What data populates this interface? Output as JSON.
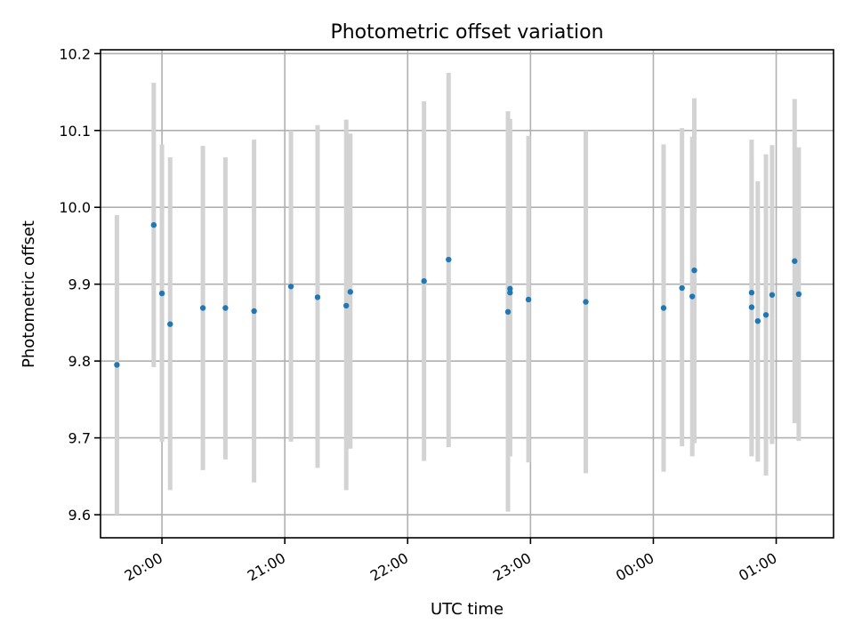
{
  "chart_data": {
    "type": "scatter",
    "title": "Photometric offset variation",
    "xlabel": "UTC time",
    "ylabel": "Photometric offset",
    "x_axis_kind": "datetime",
    "xlim": [
      "19:30",
      "01:28"
    ],
    "ylim": [
      9.57,
      10.205
    ],
    "grid": true,
    "legend": "none",
    "x_ticks": [
      {
        "value": "20:00",
        "label": "20:00"
      },
      {
        "value": "21:00",
        "label": "21:00"
      },
      {
        "value": "22:00",
        "label": "22:00"
      },
      {
        "value": "23:00",
        "label": "23:00"
      },
      {
        "value": "00:00",
        "label": "00:00"
      },
      {
        "value": "01:00",
        "label": "01:00"
      }
    ],
    "y_ticks": [
      {
        "value": 9.6,
        "label": "9.6"
      },
      {
        "value": 9.7,
        "label": "9.7"
      },
      {
        "value": 9.8,
        "label": "9.8"
      },
      {
        "value": 9.9,
        "label": "9.9"
      },
      {
        "value": 10.0,
        "label": "10.0"
      },
      {
        "value": 10.1,
        "label": "10.1"
      },
      {
        "value": 10.2,
        "label": "10.2"
      }
    ],
    "colors": {
      "point": "#1f77b4",
      "error_bar": "#d3d3d3",
      "grid": "#b0b0b0"
    },
    "series": [
      {
        "marker": "dot",
        "points": [
          {
            "x": "19:38",
            "y": 9.795,
            "y_low": 9.6,
            "y_high": 9.99
          },
          {
            "x": "19:56",
            "y": 9.977,
            "y_low": 9.792,
            "y_high": 10.162
          },
          {
            "x": "20:00",
            "y": 9.888,
            "y_low": 9.695,
            "y_high": 10.082
          },
          {
            "x": "20:04",
            "y": 9.848,
            "y_low": 9.632,
            "y_high": 10.065
          },
          {
            "x": "20:20",
            "y": 9.869,
            "y_low": 9.658,
            "y_high": 10.08
          },
          {
            "x": "20:31",
            "y": 9.869,
            "y_low": 9.672,
            "y_high": 10.065
          },
          {
            "x": "20:45",
            "y": 9.865,
            "y_low": 9.642,
            "y_high": 10.088
          },
          {
            "x": "21:03",
            "y": 9.897,
            "y_low": 9.695,
            "y_high": 10.1
          },
          {
            "x": "21:16",
            "y": 9.883,
            "y_low": 9.661,
            "y_high": 10.107
          },
          {
            "x": "21:30",
            "y": 9.872,
            "y_low": 9.632,
            "y_high": 10.114
          },
          {
            "x": "21:32",
            "y": 9.89,
            "y_low": 9.686,
            "y_high": 10.096
          },
          {
            "x": "22:08",
            "y": 9.904,
            "y_low": 9.67,
            "y_high": 10.138
          },
          {
            "x": "22:20",
            "y": 9.932,
            "y_low": 9.688,
            "y_high": 10.175
          },
          {
            "x": "22:49",
            "y": 9.864,
            "y_low": 9.604,
            "y_high": 10.125
          },
          {
            "x": "22:50",
            "y": 9.894,
            "y_low": 9.676,
            "y_high": 10.115
          },
          {
            "x": "22:50",
            "y": 9.889,
            "y_low": 9.676,
            "y_high": 10.1
          },
          {
            "x": "22:59",
            "y": 9.88,
            "y_low": 9.668,
            "y_high": 10.093
          },
          {
            "x": "23:27",
            "y": 9.877,
            "y_low": 9.654,
            "y_high": 10.1
          },
          {
            "x": "00:05",
            "y": 9.869,
            "y_low": 9.656,
            "y_high": 10.082
          },
          {
            "x": "00:14",
            "y": 9.895,
            "y_low": 9.689,
            "y_high": 10.103
          },
          {
            "x": "00:19",
            "y": 9.884,
            "y_low": 9.676,
            "y_high": 10.092
          },
          {
            "x": "00:20",
            "y": 9.918,
            "y_low": 9.693,
            "y_high": 10.142
          },
          {
            "x": "00:48",
            "y": 9.889,
            "y_low": 9.676,
            "y_high": 10.088
          },
          {
            "x": "00:48",
            "y": 9.87,
            "y_low": 9.68,
            "y_high": 10.062
          },
          {
            "x": "00:51",
            "y": 9.852,
            "y_low": 9.669,
            "y_high": 10.034
          },
          {
            "x": "00:55",
            "y": 9.86,
            "y_low": 9.651,
            "y_high": 10.069
          },
          {
            "x": "00:58",
            "y": 9.886,
            "y_low": 9.692,
            "y_high": 10.081
          },
          {
            "x": "01:09",
            "y": 9.93,
            "y_low": 9.719,
            "y_high": 10.141
          },
          {
            "x": "01:11",
            "y": 9.887,
            "y_low": 9.696,
            "y_high": 10.078
          }
        ]
      }
    ]
  }
}
